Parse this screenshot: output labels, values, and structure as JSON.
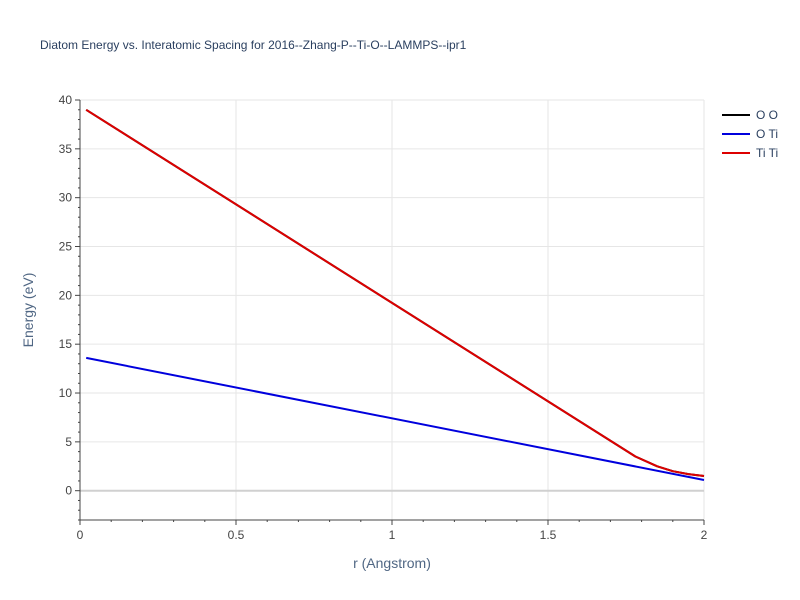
{
  "chart_data": {
    "type": "line",
    "title": "Diatom Energy vs. Interatomic Spacing for 2016--Zhang-P--Ti-O--LAMMPS--ipr1",
    "xlabel": "r (Angstrom)",
    "ylabel": "Energy (eV)",
    "xlim": [
      0,
      2
    ],
    "ylim": [
      -3,
      40
    ],
    "xticks": [
      0,
      0.5,
      1,
      1.5,
      2
    ],
    "xtick_labels": [
      "0",
      "0.5",
      "1",
      "1.5",
      "2"
    ],
    "yticks": [
      0,
      5,
      10,
      15,
      20,
      25,
      30,
      35,
      40
    ],
    "ytick_labels": [
      "0",
      "5",
      "10",
      "15",
      "20",
      "25",
      "30",
      "35",
      "40"
    ],
    "grid": true,
    "legend_position": "top-right",
    "series": [
      {
        "name": "O O",
        "color": "#000000",
        "x": [
          0.02,
          1.78,
          1.85,
          1.9,
          1.95,
          2.0
        ],
        "y": [
          39.0,
          3.5,
          2.5,
          2.0,
          1.7,
          1.5
        ]
      },
      {
        "name": "O Ti",
        "color": "#0000dd",
        "x": [
          0.02,
          2.0
        ],
        "y": [
          13.6,
          1.1
        ]
      },
      {
        "name": "Ti Ti",
        "color": "#dd0000",
        "x": [
          0.02,
          1.78,
          1.85,
          1.9,
          1.95,
          2.0
        ],
        "y": [
          39.0,
          3.5,
          2.5,
          2.0,
          1.7,
          1.5
        ]
      }
    ]
  }
}
